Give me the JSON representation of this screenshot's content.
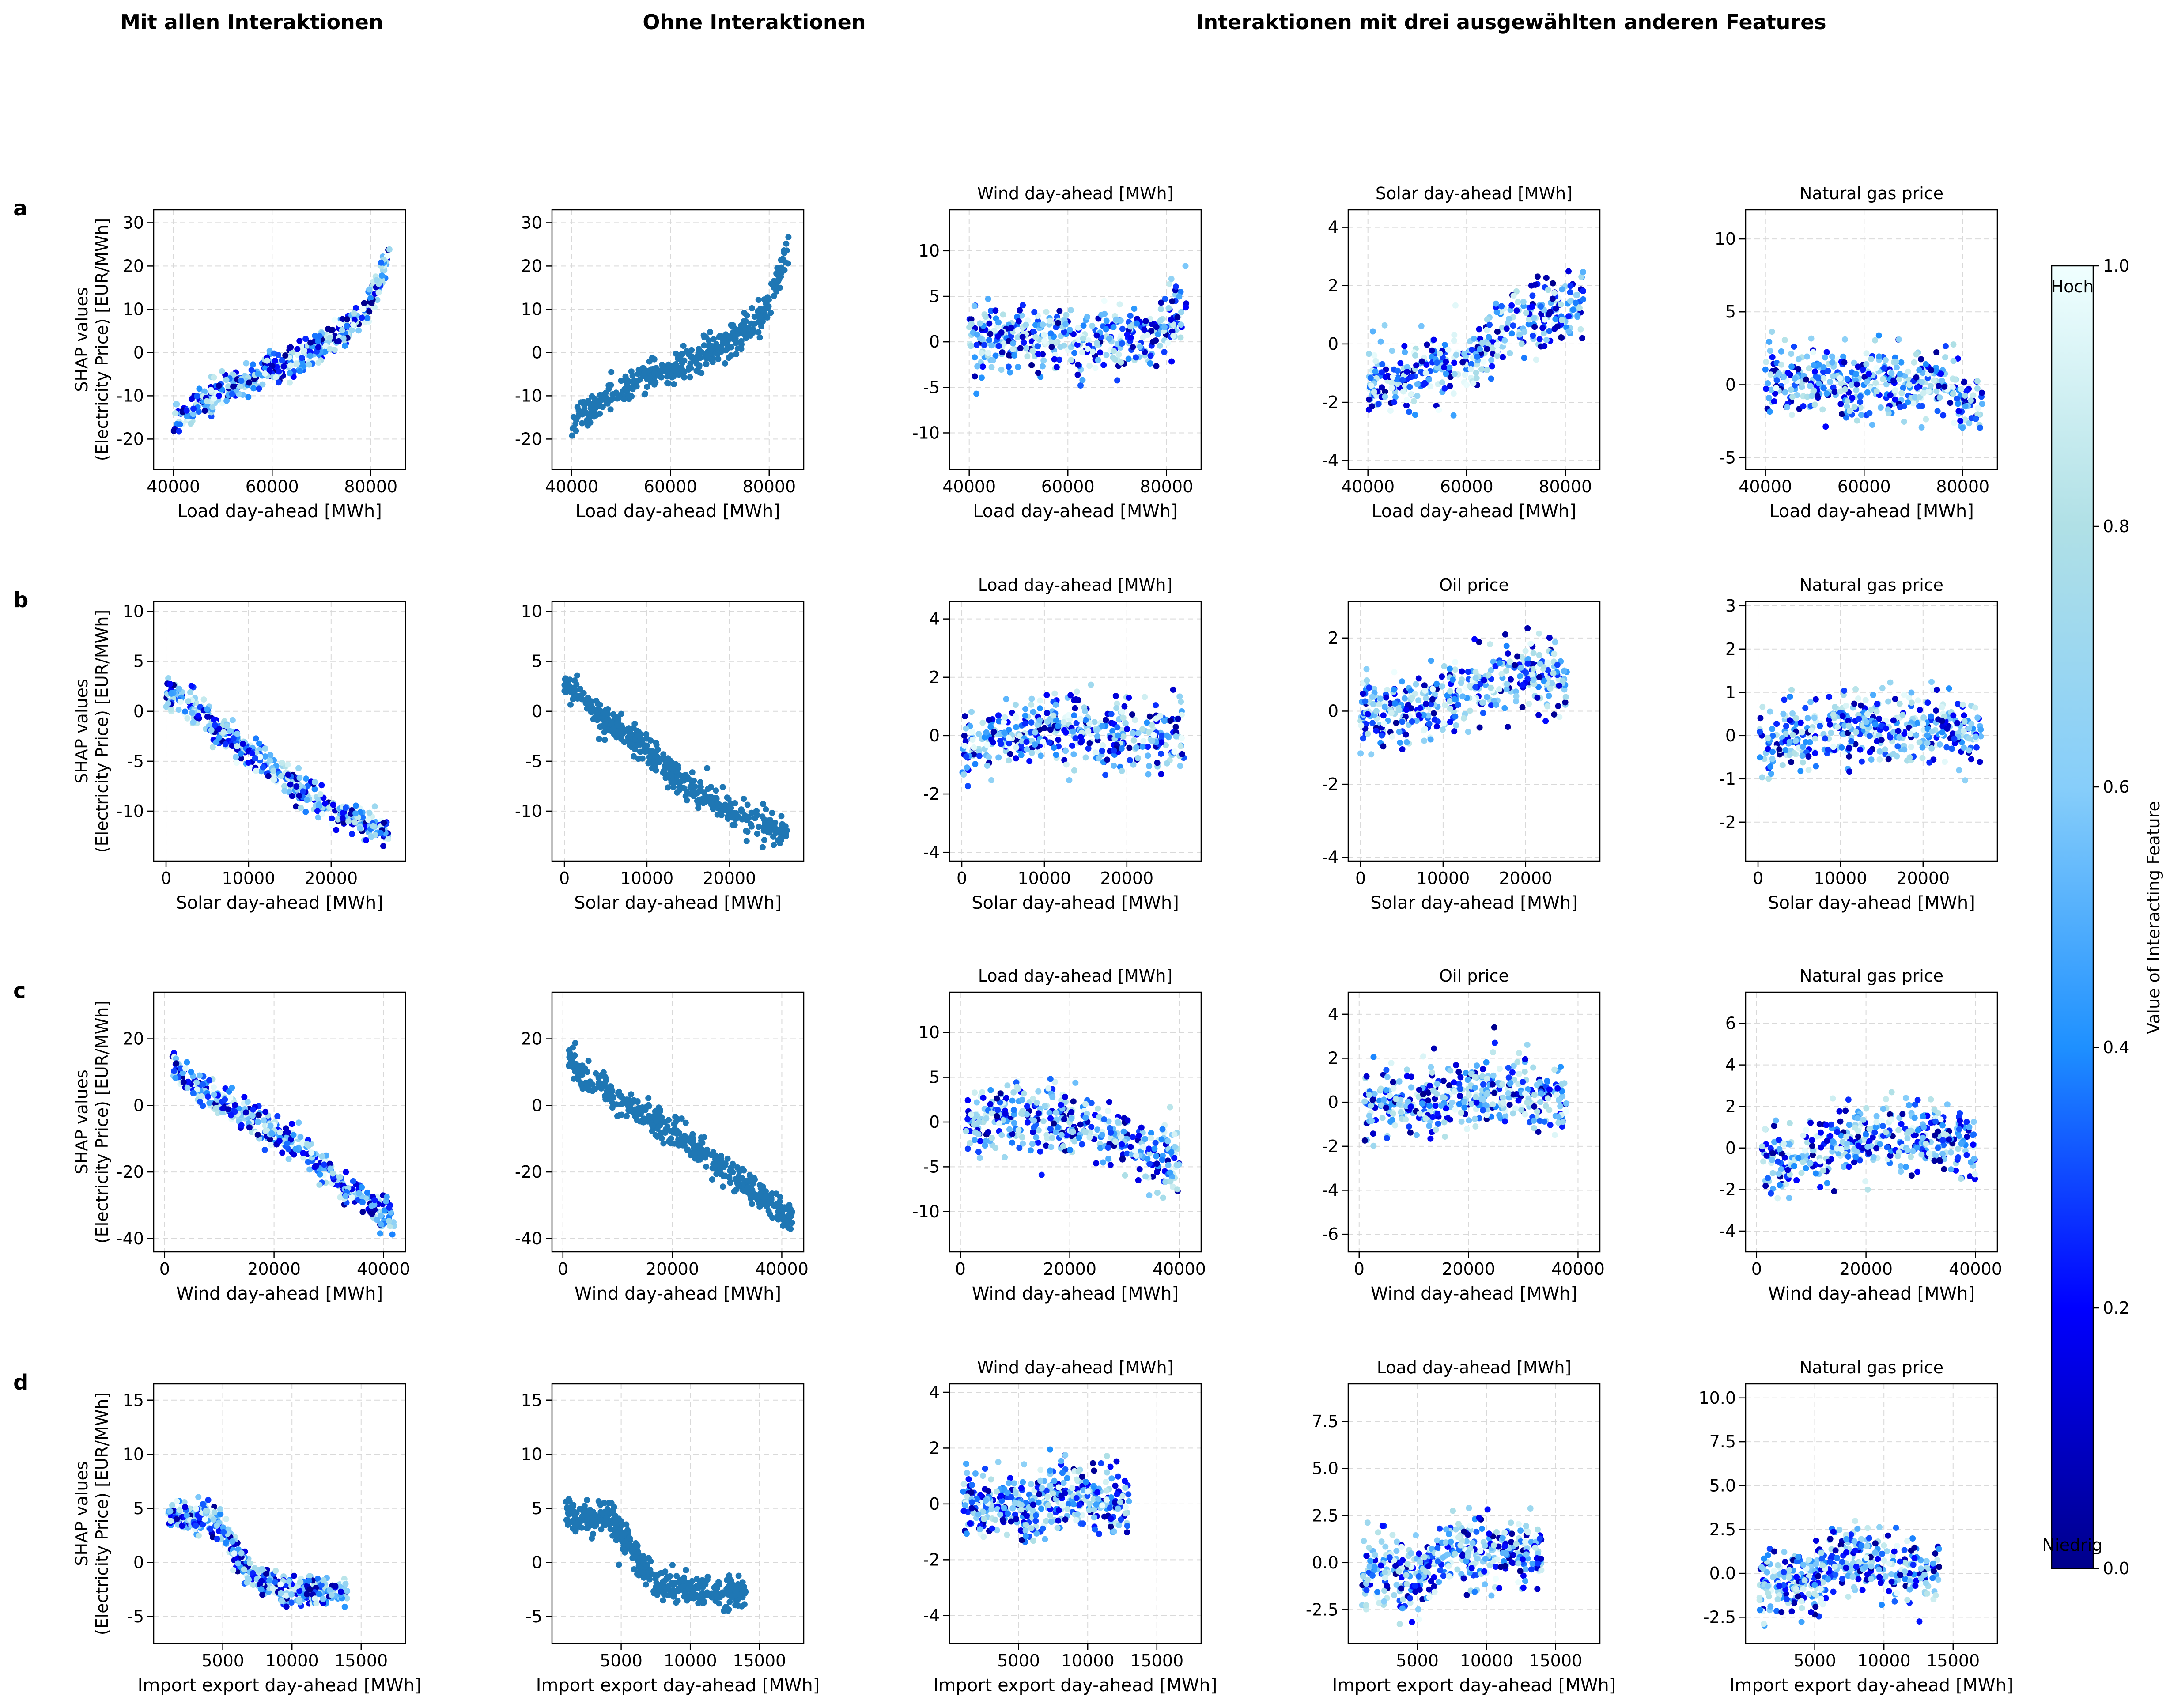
{
  "column_headers": {
    "col1": "Mit allen Interaktionen",
    "col2": "Ohne Interaktionen",
    "col3": "Interaktionen mit drei ausgewählten anderen Features"
  },
  "row_letters": [
    "a",
    "b",
    "c",
    "d"
  ],
  "y_axis_label": {
    "line1": "SHAP values",
    "line2": "(Electricity Price) [EUR/MWh]"
  },
  "colorbar": {
    "label": "Value of Interacting Feature",
    "high_label": "Hoch",
    "low_label": "Niedrig",
    "ticks": [
      "0.0",
      "0.2",
      "0.4",
      "0.6",
      "0.8",
      "1.0"
    ],
    "range": [
      0,
      1
    ],
    "colormap_stops": [
      "#00008b",
      "#0000ff",
      "#1e90ff",
      "#87cefa",
      "#b0e0e6",
      "#f0ffff"
    ]
  },
  "single_color": "#1f77b4",
  "chart_data": [
    {
      "type": "scatter",
      "row": "a",
      "col": 1,
      "title": "",
      "xlabel": "Load day-ahead [MWh]",
      "xlim": [
        36000,
        87000
      ],
      "ylim": [
        -27,
        33
      ],
      "xticks": [
        "40000",
        "60000",
        "80000"
      ],
      "yticks": [
        "-20",
        "-10",
        "0",
        "10",
        "20",
        "30"
      ],
      "colored": true,
      "trend": [
        [
          40000,
          -16
        ],
        [
          45000,
          -12
        ],
        [
          50000,
          -9
        ],
        [
          55000,
          -6
        ],
        [
          60000,
          -4
        ],
        [
          65000,
          -2
        ],
        [
          70000,
          2
        ],
        [
          75000,
          5
        ],
        [
          78000,
          8
        ],
        [
          80000,
          12
        ],
        [
          82000,
          18
        ],
        [
          84000,
          25
        ]
      ]
    },
    {
      "type": "scatter",
      "row": "a",
      "col": 2,
      "title": "",
      "xlabel": "Load day-ahead [MWh]",
      "xlim": [
        36000,
        87000
      ],
      "ylim": [
        -27,
        33
      ],
      "xticks": [
        "40000",
        "60000",
        "80000"
      ],
      "yticks": [
        "-20",
        "-10",
        "0",
        "10",
        "20",
        "30"
      ],
      "colored": false,
      "trend": [
        [
          40000,
          -16
        ],
        [
          45000,
          -12
        ],
        [
          50000,
          -9
        ],
        [
          55000,
          -6
        ],
        [
          60000,
          -4
        ],
        [
          65000,
          -2
        ],
        [
          70000,
          2
        ],
        [
          75000,
          5
        ],
        [
          78000,
          8
        ],
        [
          80000,
          12
        ],
        [
          82000,
          18
        ],
        [
          84000,
          25
        ]
      ]
    },
    {
      "type": "scatter",
      "row": "a",
      "col": 3,
      "title": "Wind day-ahead [MWh]",
      "xlabel": "Load day-ahead [MWh]",
      "xlim": [
        36000,
        87000
      ],
      "ylim": [
        -14,
        14.5
      ],
      "xticks": [
        "40000",
        "60000",
        "80000"
      ],
      "yticks": [
        "-10",
        "-5",
        "0",
        "5",
        "10"
      ],
      "colored": true,
      "trend": [
        [
          40000,
          0.5
        ],
        [
          50000,
          0.3
        ],
        [
          60000,
          0.3
        ],
        [
          70000,
          0.3
        ],
        [
          76000,
          0.5
        ],
        [
          80000,
          2
        ],
        [
          84000,
          4
        ]
      ]
    },
    {
      "type": "scatter",
      "row": "a",
      "col": 4,
      "title": "Solar day-ahead [MWh]",
      "xlabel": "Load day-ahead [MWh]",
      "xlim": [
        36000,
        87000
      ],
      "ylim": [
        -4.3,
        4.6
      ],
      "xticks": [
        "40000",
        "60000",
        "80000"
      ],
      "yticks": [
        "-4",
        "-2",
        "0",
        "2",
        "4"
      ],
      "colored": true,
      "trend": [
        [
          40000,
          -1.5
        ],
        [
          50000,
          -1.0
        ],
        [
          60000,
          -0.5
        ],
        [
          65000,
          0.0
        ],
        [
          70000,
          0.8
        ],
        [
          75000,
          1.0
        ],
        [
          80000,
          1.0
        ],
        [
          84000,
          1.2
        ]
      ]
    },
    {
      "type": "scatter",
      "row": "a",
      "col": 5,
      "title": "Natural gas price",
      "xlabel": "Load day-ahead [MWh]",
      "xlim": [
        36000,
        87000
      ],
      "ylim": [
        -5.8,
        12
      ],
      "xticks": [
        "40000",
        "60000",
        "80000"
      ],
      "yticks": [
        "-5",
        "0",
        "5",
        "10"
      ],
      "colored": true,
      "trend": [
        [
          40000,
          0.2
        ],
        [
          50000,
          0.2
        ],
        [
          60000,
          0.2
        ],
        [
          70000,
          0.2
        ],
        [
          76000,
          0.0
        ],
        [
          80000,
          -1.0
        ],
        [
          84000,
          -1.5
        ]
      ]
    },
    {
      "type": "scatter",
      "row": "b",
      "col": 1,
      "title": "",
      "xlabel": "Solar day-ahead [MWh]",
      "xlim": [
        -1500,
        29000
      ],
      "ylim": [
        -15,
        11
      ],
      "xticks": [
        "0",
        "10000",
        "20000"
      ],
      "yticks": [
        "-10",
        "-5",
        "0",
        "5",
        "10"
      ],
      "colored": true,
      "trend": [
        [
          0,
          2
        ],
        [
          2000,
          1
        ],
        [
          5000,
          -1
        ],
        [
          10000,
          -4
        ],
        [
          15000,
          -7
        ],
        [
          20000,
          -10
        ],
        [
          25000,
          -11.5
        ],
        [
          27000,
          -12
        ]
      ]
    },
    {
      "type": "scatter",
      "row": "b",
      "col": 2,
      "title": "",
      "xlabel": "Solar day-ahead [MWh]",
      "xlim": [
        -1500,
        29000
      ],
      "ylim": [
        -15,
        11
      ],
      "xticks": [
        "0",
        "10000",
        "20000"
      ],
      "yticks": [
        "-10",
        "-5",
        "0",
        "5",
        "10"
      ],
      "colored": false,
      "trend": [
        [
          0,
          3
        ],
        [
          2000,
          1.5
        ],
        [
          5000,
          -1
        ],
        [
          10000,
          -4
        ],
        [
          15000,
          -7.5
        ],
        [
          20000,
          -10
        ],
        [
          25000,
          -11.5
        ],
        [
          27000,
          -12
        ]
      ]
    },
    {
      "type": "scatter",
      "row": "b",
      "col": 3,
      "title": "Load day-ahead [MWh]",
      "xlabel": "Solar day-ahead [MWh]",
      "xlim": [
        -1500,
        29000
      ],
      "ylim": [
        -4.3,
        4.6
      ],
      "xticks": [
        "0",
        "10000",
        "20000"
      ],
      "yticks": [
        "-4",
        "-2",
        "0",
        "2",
        "4"
      ],
      "colored": true,
      "trend": [
        [
          0,
          -0.5
        ],
        [
          5000,
          0.2
        ],
        [
          10000,
          0.2
        ],
        [
          15000,
          0.0
        ],
        [
          20000,
          0.0
        ],
        [
          27000,
          0.0
        ]
      ]
    },
    {
      "type": "scatter",
      "row": "b",
      "col": 4,
      "title": "Oil price",
      "xlabel": "Solar day-ahead [MWh]",
      "xlim": [
        -1500,
        29000
      ],
      "ylim": [
        -4.1,
        3.0
      ],
      "xticks": [
        "0",
        "10000",
        "20000"
      ],
      "yticks": [
        "-4",
        "-2",
        "0",
        "2"
      ],
      "colored": true,
      "trend": [
        [
          0,
          0.0
        ],
        [
          5000,
          0.0
        ],
        [
          10000,
          0.3
        ],
        [
          15000,
          0.8
        ],
        [
          20000,
          1.0
        ],
        [
          25000,
          0.8
        ]
      ]
    },
    {
      "type": "scatter",
      "row": "b",
      "col": 5,
      "title": "Natural gas price",
      "xlabel": "Solar day-ahead [MWh]",
      "xlim": [
        -1500,
        29000
      ],
      "ylim": [
        -2.9,
        3.1
      ],
      "xticks": [
        "0",
        "10000",
        "20000"
      ],
      "yticks": [
        "-2",
        "-1",
        "0",
        "1",
        "2",
        "3"
      ],
      "colored": true,
      "trend": [
        [
          0,
          -0.2
        ],
        [
          5000,
          0.0
        ],
        [
          10000,
          0.2
        ],
        [
          15000,
          0.2
        ],
        [
          20000,
          0.1
        ],
        [
          27000,
          0.1
        ]
      ]
    },
    {
      "type": "scatter",
      "row": "c",
      "col": 1,
      "title": "",
      "xlabel": "Wind day-ahead [MWh]",
      "xlim": [
        -2000,
        44000
      ],
      "ylim": [
        -44,
        34
      ],
      "xticks": [
        "0",
        "20000",
        "40000"
      ],
      "yticks": [
        "-40",
        "-20",
        "0",
        "20"
      ],
      "colored": true,
      "trend": [
        [
          1000,
          12
        ],
        [
          5000,
          7
        ],
        [
          10000,
          2
        ],
        [
          15000,
          -3
        ],
        [
          20000,
          -8
        ],
        [
          25000,
          -13
        ],
        [
          30000,
          -20
        ],
        [
          35000,
          -27
        ],
        [
          40000,
          -33
        ],
        [
          42000,
          -35
        ]
      ]
    },
    {
      "type": "scatter",
      "row": "c",
      "col": 2,
      "title": "",
      "xlabel": "Wind day-ahead [MWh]",
      "xlim": [
        -2000,
        44000
      ],
      "ylim": [
        -44,
        34
      ],
      "xticks": [
        "0",
        "20000",
        "40000"
      ],
      "yticks": [
        "-40",
        "-20",
        "0",
        "20"
      ],
      "colored": false,
      "trend": [
        [
          1000,
          14
        ],
        [
          5000,
          7
        ],
        [
          10000,
          2
        ],
        [
          15000,
          -3
        ],
        [
          20000,
          -8
        ],
        [
          25000,
          -13
        ],
        [
          30000,
          -19
        ],
        [
          35000,
          -26
        ],
        [
          40000,
          -32
        ],
        [
          42000,
          -34
        ]
      ]
    },
    {
      "type": "scatter",
      "row": "c",
      "col": 3,
      "title": "Load day-ahead [MWh]",
      "xlabel": "Wind day-ahead [MWh]",
      "xlim": [
        -2000,
        44000
      ],
      "ylim": [
        -14.5,
        14.5
      ],
      "xticks": [
        "0",
        "20000",
        "40000"
      ],
      "yticks": [
        "-10",
        "-5",
        "0",
        "5",
        "10"
      ],
      "colored": true,
      "trend": [
        [
          1000,
          -0.5
        ],
        [
          8000,
          0.8
        ],
        [
          15000,
          0.5
        ],
        [
          22000,
          0.0
        ],
        [
          28000,
          -1.5
        ],
        [
          34000,
          -3.5
        ],
        [
          40000,
          -5
        ]
      ]
    },
    {
      "type": "scatter",
      "row": "c",
      "col": 4,
      "title": "Oil price",
      "xlabel": "Wind day-ahead [MWh]",
      "xlim": [
        -2000,
        44000
      ],
      "ylim": [
        -6.8,
        5
      ],
      "xticks": [
        "0",
        "20000",
        "40000"
      ],
      "yticks": [
        "-6",
        "-4",
        "-2",
        "0",
        "2",
        "4"
      ],
      "colored": true,
      "trend": [
        [
          1000,
          0.0
        ],
        [
          8000,
          0.0
        ],
        [
          15000,
          0.0
        ],
        [
          22000,
          0.5
        ],
        [
          30000,
          0.5
        ],
        [
          38000,
          0.2
        ]
      ]
    },
    {
      "type": "scatter",
      "row": "c",
      "col": 5,
      "title": "Natural gas price",
      "xlabel": "Wind day-ahead [MWh]",
      "xlim": [
        -2000,
        44000
      ],
      "ylim": [
        -5,
        7.5
      ],
      "xticks": [
        "0",
        "20000",
        "40000"
      ],
      "yticks": [
        "-4",
        "-2",
        "0",
        "2",
        "4",
        "6"
      ],
      "colored": true,
      "trend": [
        [
          1000,
          -0.5
        ],
        [
          5000,
          -0.8
        ],
        [
          10000,
          0.0
        ],
        [
          20000,
          0.3
        ],
        [
          30000,
          0.5
        ],
        [
          40000,
          0.2
        ]
      ]
    },
    {
      "type": "scatter",
      "row": "d",
      "col": 1,
      "title": "",
      "xlabel": "Import export day-ahead [MWh]",
      "xlim": [
        0,
        18200
      ],
      "ylim": [
        -7.5,
        16.5
      ],
      "xticks": [
        "5000",
        "10000",
        "15000"
      ],
      "yticks": [
        "-5",
        "0",
        "5",
        "10",
        "15"
      ],
      "colored": true,
      "trend": [
        [
          1000,
          4.5
        ],
        [
          2000,
          4.2
        ],
        [
          3000,
          4.0
        ],
        [
          4000,
          4.5
        ],
        [
          5000,
          3.0
        ],
        [
          6000,
          0.5
        ],
        [
          7000,
          -1.0
        ],
        [
          8000,
          -2.0
        ],
        [
          10000,
          -2.5
        ],
        [
          12000,
          -2.8
        ],
        [
          14000,
          -2.8
        ]
      ]
    },
    {
      "type": "scatter",
      "row": "d",
      "col": 2,
      "title": "",
      "xlabel": "Import export day-ahead [MWh]",
      "xlim": [
        0,
        18200
      ],
      "ylim": [
        -7.5,
        16.5
      ],
      "xticks": [
        "5000",
        "10000",
        "15000"
      ],
      "yticks": [
        "-5",
        "0",
        "5",
        "10",
        "15"
      ],
      "colored": false,
      "trend": [
        [
          1000,
          4.5
        ],
        [
          2000,
          4.2
        ],
        [
          3000,
          4.0
        ],
        [
          4000,
          4.5
        ],
        [
          5000,
          3.0
        ],
        [
          6000,
          0.5
        ],
        [
          7000,
          -1.0
        ],
        [
          8000,
          -2.0
        ],
        [
          10000,
          -2.5
        ],
        [
          12000,
          -2.8
        ],
        [
          14000,
          -2.8
        ]
      ]
    },
    {
      "type": "scatter",
      "row": "d",
      "col": 3,
      "title": "Wind day-ahead [MWh]",
      "xlabel": "Import export day-ahead [MWh]",
      "xlim": [
        0,
        18200
      ],
      "ylim": [
        -5,
        4.3
      ],
      "xticks": [
        "5000",
        "10000",
        "15000"
      ],
      "yticks": [
        "-4",
        "-2",
        "0",
        "2",
        "4"
      ],
      "colored": true,
      "trend": [
        [
          1000,
          0.0
        ],
        [
          3000,
          0.0
        ],
        [
          5000,
          -0.2
        ],
        [
          7000,
          0.3
        ],
        [
          9000,
          0.2
        ],
        [
          11000,
          0.0
        ],
        [
          13000,
          0.0
        ]
      ]
    },
    {
      "type": "scatter",
      "row": "d",
      "col": 4,
      "title": "Load day-ahead [MWh]",
      "xlabel": "Import export day-ahead [MWh]",
      "xlim": [
        0,
        18200
      ],
      "ylim": [
        -4.3,
        9.5
      ],
      "xticks": [
        "5000",
        "10000",
        "15000"
      ],
      "yticks": [
        "-2.5",
        "0.0",
        "2.5",
        "5.0",
        "7.5"
      ],
      "colored": true,
      "trend": [
        [
          1000,
          -0.5
        ],
        [
          3000,
          -0.7
        ],
        [
          5000,
          -0.8
        ],
        [
          6000,
          0.0
        ],
        [
          8000,
          0.7
        ],
        [
          11000,
          0.6
        ],
        [
          14000,
          0.5
        ]
      ]
    },
    {
      "type": "scatter",
      "row": "d",
      "col": 5,
      "title": "Natural gas price",
      "xlabel": "Import export day-ahead [MWh]",
      "xlim": [
        0,
        18200
      ],
      "ylim": [
        -4,
        10.8
      ],
      "xticks": [
        "5000",
        "10000",
        "15000"
      ],
      "yticks": [
        "-2.5",
        "0.0",
        "2.5",
        "5.0",
        "7.5",
        "10.0"
      ],
      "colored": true,
      "trend": [
        [
          1000,
          -0.8
        ],
        [
          3000,
          -0.7
        ],
        [
          5000,
          -0.5
        ],
        [
          7000,
          0.8
        ],
        [
          9000,
          0.6
        ],
        [
          12000,
          0.2
        ],
        [
          14000,
          0.3
        ]
      ]
    }
  ]
}
